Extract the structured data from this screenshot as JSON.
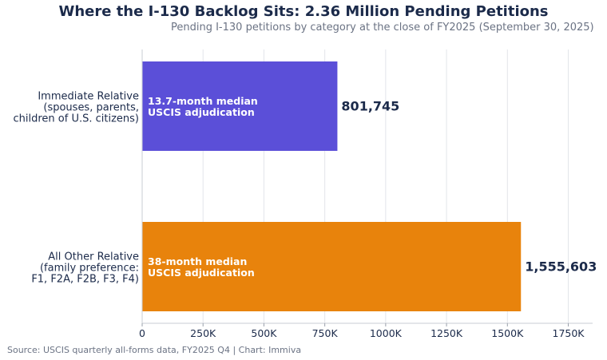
{
  "chart_data": {
    "type": "bar",
    "orientation": "horizontal",
    "title": "Where the I-130 Backlog Sits: 2.36 Million Pending Petitions",
    "subtitle": "Pending I-130 petitions by category at the close of FY2025 (September 30, 2025)",
    "source": "Source: USCIS quarterly all-forms data, FY2025 Q4  |  Chart: Immiva",
    "categories": [
      [
        "Immediate Relative",
        "(spouses, parents,",
        "children of U.S. citizens)"
      ],
      [
        "All Other Relative",
        "(family preference:",
        "F1, F2A, F2B, F3, F4)"
      ]
    ],
    "values": [
      801745,
      1555603
    ],
    "value_labels": [
      "801,745",
      "1,555,603"
    ],
    "bar_annotations": [
      [
        "13.7-month median",
        "USCIS adjudication"
      ],
      [
        "38-month median",
        "USCIS adjudication"
      ]
    ],
    "colors": [
      "#5b4fd8",
      "#e8830c"
    ],
    "xlim": [
      0,
      1850000
    ],
    "xticks": [
      0,
      250000,
      500000,
      750000,
      1000000,
      1250000,
      1500000,
      1750000
    ],
    "xtick_labels": [
      "0",
      "250K",
      "500K",
      "750K",
      "1000K",
      "1250K",
      "1500K",
      "1750K"
    ],
    "grid": true,
    "xlabel": "",
    "ylabel": ""
  }
}
